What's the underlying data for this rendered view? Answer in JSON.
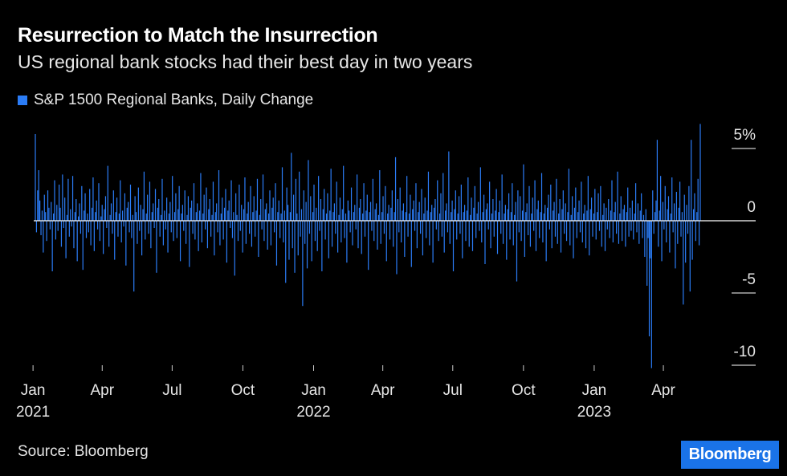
{
  "colors": {
    "background": "#000000",
    "bar": "#2b7cf6",
    "text": "#e6e6e6",
    "brand_bg": "#1a73e8"
  },
  "header": {
    "title": "Resurrection to Match the Insurrection",
    "subtitle": "US regional bank stocks had their best day in two years"
  },
  "footer": {
    "source": "Source: Bloomberg",
    "brand": "Bloomberg"
  },
  "chart_data": {
    "type": "bar",
    "series": [
      {
        "name": "S&P 1500 Regional Banks, Daily Change",
        "x_start": "2021-01-04",
        "x_end": "2023-05-19",
        "values": [
          6,
          -0.8,
          2.1,
          3.5,
          1.4,
          -1,
          0.7,
          -2.2,
          1.8,
          0.6,
          -1.4,
          2.1,
          0.9,
          -0.6,
          1.3,
          -3.5,
          0.5,
          2.8,
          -1.3,
          1.1,
          -0.7,
          2.5,
          0.9,
          -1.8,
          3.2,
          -0.5,
          1.6,
          -2.6,
          0.4,
          2.9,
          -1.1,
          0.8,
          -0.4,
          3.1,
          -1.9,
          0.6,
          1.5,
          -2.8,
          0.3,
          1.2,
          -0.9,
          2.4,
          -3.4,
          0.7,
          1.9,
          -1.2,
          0.5,
          -0.8,
          2.2,
          -1.7,
          0.9,
          3,
          -2.1,
          0.6,
          1.4,
          -0.6,
          2.6,
          -1.4,
          0.3,
          1.1,
          -2.3,
          0.8,
          1.7,
          -0.5,
          3.8,
          -1.8,
          0.4,
          1.2,
          -0.9,
          2.1,
          -2.7,
          0.6,
          1.6,
          -1.1,
          0.5,
          2.8,
          -1.5,
          0.7,
          -0.4,
          1.9,
          -3.1,
          0.9,
          1.3,
          -0.8,
          2.5,
          -1.2,
          0.4,
          -4.9,
          1.7,
          0.6,
          -1.6,
          2.3,
          -0.7,
          1.1,
          -2.4,
          0.8,
          3.4,
          -1.3,
          0.5,
          1.8,
          -0.9,
          2.7,
          -1.9,
          0.6,
          1.2,
          -0.5,
          2.2,
          -3.6,
          0.9,
          1.5,
          -1.1,
          0.4,
          2.9,
          -1.7,
          0.7,
          -0.6,
          1.6,
          -2.2,
          0.5,
          1.3,
          -0.8,
          3.1,
          -1.4,
          0.6,
          1.9,
          -1.2,
          0.8,
          2.4,
          -2.8,
          0.5,
          1.1,
          -0.7,
          2.1,
          -1.6,
          0.4,
          1.7,
          -3.2,
          0.9,
          1.4,
          -0.9,
          2.6,
          -1.3,
          0.6,
          1.2,
          -2.1,
          0.7,
          3.3,
          -1.5,
          0.5,
          1.8,
          -0.6,
          2.3,
          -1.9,
          0.8,
          1.5,
          -1.1,
          0.4,
          2.7,
          -2.4,
          0.6,
          1.2,
          -0.8,
          3.5,
          -1.7,
          0.5,
          1.6,
          -1.3,
          0.9,
          2.2,
          -2.9,
          0.7,
          1.4,
          -0.5,
          2.8,
          -1.2,
          0.6,
          -3.8,
          1.9,
          0.4,
          -1.4,
          2.5,
          -0.7,
          1.1,
          -2.2,
          0.8,
          3,
          -1.6,
          0.5,
          1.3,
          -0.9,
          2.4,
          -1.8,
          0.6,
          1.7,
          -1.1,
          0.7,
          2.9,
          -2.5,
          0.4,
          1.5,
          -0.6,
          3.2,
          -1.4,
          0.8,
          1.2,
          -2,
          0.5,
          2.1,
          -1.7,
          0.9,
          1.6,
          -0.8,
          2.6,
          -3.1,
          0.6,
          1.4,
          -1.2,
          0.5,
          3.7,
          -1.5,
          0.7,
          -4.3,
          2.3,
          1.1,
          -2.7,
          0.6,
          4.7,
          -1.9,
          1.8,
          -3.6,
          2.9,
          0.5,
          -2.4,
          3.4,
          -1.1,
          0.8,
          -5.9,
          2.1,
          -1.6,
          1.3,
          -3.3,
          4.2,
          -0.9,
          1.7,
          -2.8,
          0.6,
          2.5,
          -1.4,
          0.9,
          -2.1,
          3.1,
          -0.7,
          1.5,
          -3.5,
          0.8,
          2.2,
          -1.3,
          0.5,
          1.9,
          -2.6,
          0.7,
          3.6,
          -1.8,
          0.6,
          1.2,
          -0.9,
          2.7,
          -2.2,
          0.4,
          1.6,
          -1.5,
          0.8,
          3.8,
          -1.2,
          0.5,
          -2.9,
          1.4,
          0.7,
          -0.8,
          2.3,
          -1.7,
          0.6,
          1.1,
          -0.6,
          3.2,
          -1.9,
          0.9,
          1.5,
          -2.3,
          0.5,
          2.6,
          -1.1,
          0.7,
          1.8,
          -3.4,
          0.6,
          1.3,
          -0.7,
          2.9,
          -1.4,
          0.8,
          1.2,
          -2,
          0.4,
          3.5,
          -1.6,
          0.6,
          1.7,
          -0.9,
          2.4,
          -2.8,
          0.5,
          1.1,
          -1.3,
          0.9,
          2.1,
          -1.8,
          0.6,
          4.4,
          -3.7,
          1.5,
          -0.8,
          2.3,
          -1.5,
          0.7,
          1.2,
          -2.5,
          0.6,
          3.1,
          -1.1,
          0.5,
          1.8,
          -3.2,
          0.8,
          1.4,
          -0.7,
          2.6,
          -1.9,
          0.6,
          1.3,
          -0.9,
          2.2,
          -2.4,
          0.5,
          1.6,
          -1.2,
          0.7,
          3.4,
          -1.7,
          0.6,
          1.1,
          -2.9,
          0.9,
          1.5,
          -0.6,
          2.8,
          -1.4,
          0.5,
          1.9,
          -1.1,
          3.3,
          -2.2,
          0.7,
          1.2,
          -0.8,
          4.8,
          -1.6,
          0.6,
          1.4,
          -3.5,
          0.8,
          2.1,
          -1.3,
          0.5,
          1.7,
          -0.9,
          2.5,
          -2.6,
          0.6,
          1.1,
          -1.4,
          0.7,
          3,
          -1.8,
          0.4,
          1.6,
          -2.1,
          0.9,
          2.4,
          -1.2,
          0.5,
          1.3,
          -0.7,
          3.7,
          -1.5,
          0.6,
          1.8,
          -3,
          0.8,
          1.2,
          -0.6,
          2.7,
          -1.9,
          0.5,
          1.5,
          -1.1,
          0.7,
          2.2,
          -2.3,
          0.6,
          1.4,
          -0.9,
          3.2,
          -1.6,
          0.5,
          1.1,
          -2.7,
          0.8,
          1.9,
          -1.3,
          0.6,
          2.6,
          -1.7,
          0.4,
          1.3,
          -4.2,
          2.1,
          -0.8,
          1.7,
          -1.4,
          0.7,
          3.9,
          -2.5,
          0.6,
          1.2,
          -1,
          2.4,
          -1.8,
          0.5,
          1.6,
          -0.7,
          2.8,
          -2.1,
          0.8,
          1.4,
          -1.2,
          0.6,
          3.3,
          -1.5,
          0.5,
          1.1,
          -2.8,
          0.9,
          1.8,
          -0.6,
          2.5,
          -1.9,
          0.7,
          1.3,
          -1.1,
          2.9,
          -1.6,
          0.5,
          1.5,
          -2.2,
          0.8,
          2.1,
          -0.9,
          1.2,
          -1.4,
          0.6,
          3.6,
          -1.7,
          0.4,
          1.7,
          -2.6,
          0.9,
          2.3,
          -1.2,
          0.6,
          1.4,
          -0.8,
          2.7,
          -1.5,
          0.5,
          1.1,
          -1.9,
          0.7,
          3.1,
          -2.4,
          0.8,
          1.6,
          -1.1,
          0.5,
          2.2,
          -1.3,
          0.6,
          1.9,
          -0.7,
          2.4,
          -1.8,
          0.4,
          1.2,
          -2.1,
          0.9,
          -0.6,
          1.5,
          -1.2,
          0.7,
          2.8,
          -1.5,
          0.6,
          1.3,
          -0.9,
          3.4,
          -1.6,
          0.5,
          1.7,
          -1.4,
          0.8,
          1.1,
          -1.8,
          0.6,
          2.3,
          -1.1,
          0.9,
          -0.7,
          1.4,
          -1.3,
          0.5,
          2.6,
          -0.8,
          1.2,
          -1.6,
          0.7,
          1.9,
          -1.2,
          0.4,
          -2.5,
          0.8,
          -4.5,
          -1.2,
          -8,
          -2.6,
          -10.2,
          2.1,
          -0.9,
          0.6,
          1.4,
          5.6,
          -1.8,
          0.7,
          3.1,
          -2.8,
          1.3,
          -0.6,
          2.4,
          -1.5,
          0.8,
          1.7,
          -2.2,
          0.5,
          3,
          -0.8,
          1.2,
          -3.3,
          2,
          -1.6,
          0.9,
          2.7,
          -1.1,
          0.6,
          -5.8,
          1.8,
          -2.9,
          1.1,
          -0.9,
          2.4,
          -4.9,
          5.6,
          -2.7,
          0.8,
          1.9,
          -1.4,
          0.6,
          2.9,
          -1.7,
          6.7
        ]
      }
    ],
    "x_tick_labels": [
      {
        "date": "2021-01-01",
        "label": "Jan",
        "year": "2021"
      },
      {
        "date": "2021-04-01",
        "label": "Apr",
        "year": ""
      },
      {
        "date": "2021-07-01",
        "label": "Jul",
        "year": ""
      },
      {
        "date": "2021-10-01",
        "label": "Oct",
        "year": ""
      },
      {
        "date": "2022-01-01",
        "label": "Jan",
        "year": "2022"
      },
      {
        "date": "2022-04-01",
        "label": "Apr",
        "year": ""
      },
      {
        "date": "2022-07-01",
        "label": "Jul",
        "year": ""
      },
      {
        "date": "2022-10-01",
        "label": "Oct",
        "year": ""
      },
      {
        "date": "2023-01-01",
        "label": "Jan",
        "year": "2023"
      },
      {
        "date": "2023-04-01",
        "label": "Apr",
        "year": ""
      }
    ],
    "y_ticks": [
      {
        "value": 5,
        "label": "5%"
      },
      {
        "value": 0,
        "label": "0"
      },
      {
        "value": -5,
        "label": "-5"
      },
      {
        "value": -10,
        "label": "-10"
      }
    ],
    "ylim": [
      -10.5,
      7
    ],
    "legend_position": "top-left",
    "grid": false
  }
}
